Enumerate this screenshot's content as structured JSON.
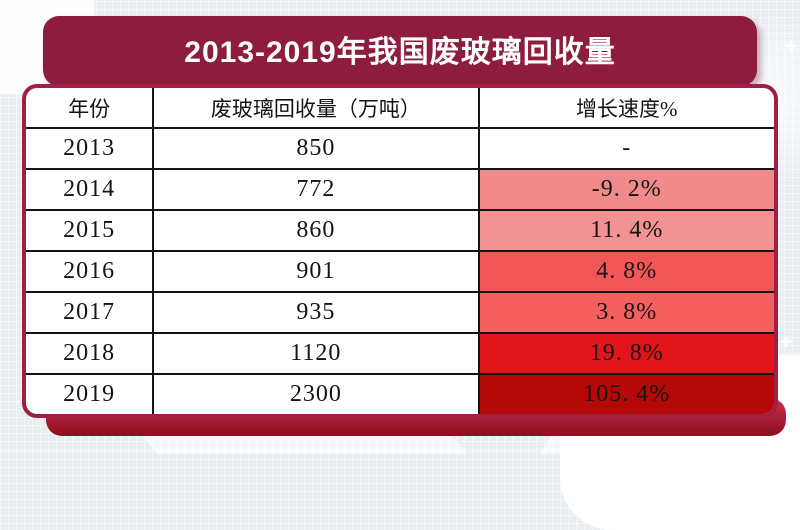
{
  "theme": {
    "page_bg": "#E9EEF3",
    "banner_bg": "#8E1C3E",
    "card_border": "#A21F44",
    "base_bar_top": "#C73250",
    "base_bar_bottom": "#8C0F22",
    "grid_line_color": "#141414"
  },
  "decorations": {
    "sparkle_glyph": "+"
  },
  "banner": {
    "title": "2013-2019年我国废玻璃回收量"
  },
  "table": {
    "columns": [
      "年份",
      "废玻璃回收量（万吨）",
      "增长速度%"
    ],
    "rows": [
      {
        "year": "2013",
        "volume": "850",
        "growth": "-",
        "growth_bg": "#FFFFFF"
      },
      {
        "year": "2014",
        "volume": "772",
        "growth": "-9. 2%",
        "growth_bg": "#F18A8A"
      },
      {
        "year": "2015",
        "volume": "860",
        "growth": "11. 4%",
        "growth_bg": "#F39292"
      },
      {
        "year": "2016",
        "volume": "901",
        "growth": "4. 8%",
        "growth_bg": "#F15757"
      },
      {
        "year": "2017",
        "volume": "935",
        "growth": "3. 8%",
        "growth_bg": "#F55F5F"
      },
      {
        "year": "2018",
        "volume": "1120",
        "growth": "19. 8%",
        "growth_bg": "#E2151A"
      },
      {
        "year": "2019",
        "volume": "2300",
        "growth": "105. 4%",
        "growth_bg": "#B50809"
      }
    ]
  },
  "chart_data": {
    "type": "table",
    "title": "2013-2019年我国废玻璃回收量",
    "columns": [
      "年份",
      "废玻璃回收量（万吨）",
      "增长速度%"
    ],
    "categories": [
      "2013",
      "2014",
      "2015",
      "2016",
      "2017",
      "2018",
      "2019"
    ],
    "series": [
      {
        "name": "废玻璃回收量（万吨）",
        "values": [
          850,
          772,
          860,
          901,
          935,
          1120,
          2300
        ]
      },
      {
        "name": "增长速度%",
        "values": [
          null,
          -9.2,
          11.4,
          4.8,
          3.8,
          19.8,
          105.4
        ]
      }
    ],
    "layout_hints": {
      "growth_cells_shaded": true,
      "shading": "red intensity per row, darkest for 105.4%"
    }
  }
}
